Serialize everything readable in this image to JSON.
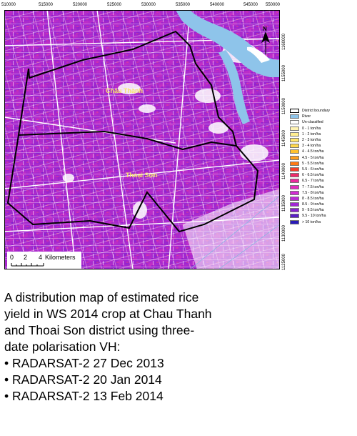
{
  "map": {
    "x_ticks": [
      "510000",
      "515000",
      "520000",
      "525000",
      "530000",
      "535000",
      "540000",
      "545000",
      "550000"
    ],
    "y_ticks": [
      "1160000",
      "1155000",
      "1150000",
      "1145000",
      "1140000",
      "1135000",
      "1130000",
      "1125000"
    ],
    "places": [
      "Châu Thành",
      "Thoại Sơn"
    ],
    "north_label": "N",
    "scale_bar": {
      "ticks": [
        "0",
        "2",
        "4"
      ],
      "unit": "Kilometers"
    },
    "colors": {
      "rice_base": "#b52cc9",
      "rice_high": "#7a22cf",
      "river": "#8ec4ea",
      "boundary": "#000000",
      "unclassified": "#ffffff"
    }
  },
  "legend": [
    {
      "label": "District boundary",
      "color": "#ffffff",
      "type": "boundary"
    },
    {
      "label": "River",
      "color": "#8ec4ea"
    },
    {
      "label": "Un-classified",
      "color": "#ffffff"
    },
    {
      "label": "0 - 1 ton/ha",
      "color": "#fff3b3"
    },
    {
      "label": "1 - 2 ton/ha",
      "color": "#ffee90"
    },
    {
      "label": "2 - 3 ton/ha",
      "color": "#ffe66e"
    },
    {
      "label": "3 - 4 ton/ha",
      "color": "#ffd84c"
    },
    {
      "label": "4 - 4.5 ton/ha",
      "color": "#ffc12e"
    },
    {
      "label": "4.5 - 5 ton/ha",
      "color": "#ff9e1e"
    },
    {
      "label": "5 - 5.5 ton/ha",
      "color": "#ff7a14"
    },
    {
      "label": "5.5 - 6 ton/ha",
      "color": "#f4402a"
    },
    {
      "label": "6 - 6.5 ton/ha",
      "color": "#ee2a6a"
    },
    {
      "label": "6.5 - 7 ton/ha",
      "color": "#ea2a9c"
    },
    {
      "label": "7 - 7.5 ton/ha",
      "color": "#e32bc0"
    },
    {
      "label": "7.5 - 8 ton/ha",
      "color": "#d22bd3"
    },
    {
      "label": "8 - 8.5 ton/ha",
      "color": "#bb2ad6"
    },
    {
      "label": "8.5 - 9 ton/ha",
      "color": "#a126d4"
    },
    {
      "label": "9 - 9.5 ton/ha",
      "color": "#8722cf"
    },
    {
      "label": "9.5 - 10 ton/ha",
      "color": "#5a1ec8"
    },
    {
      "label": "> 10 ton/ha",
      "color": "#2a1ab8"
    }
  ],
  "caption": {
    "lines": [
      "A distribution map of estimated rice",
      "yield in WS 2014 crop at Chau Thanh",
      "and Thoai Son district using three-",
      "date polarisation VH:"
    ],
    "bullets": [
      "• RADARSAT-2  27 Dec 2013",
      "• RADARSAT-2  20 Jan 2014",
      "• RADARSAT-2  13 Feb 2014"
    ]
  }
}
